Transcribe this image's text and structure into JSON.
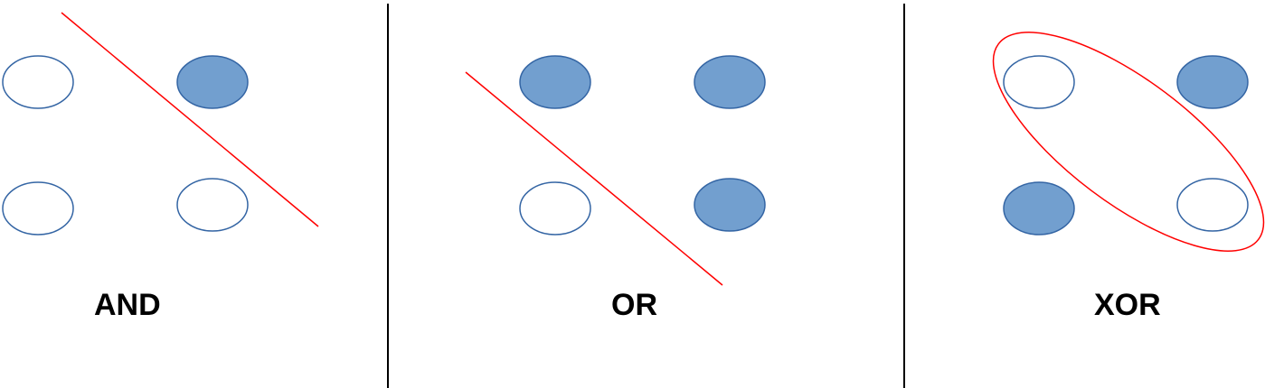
{
  "colors": {
    "filled": "#729fcf",
    "stroke": "#3465a4",
    "separator": "#ff0000",
    "divider": "#000000",
    "background": "#ffffff"
  },
  "panels": [
    {
      "label": "AND",
      "points": [
        {
          "input": [
            0,
            1
          ],
          "filled": false
        },
        {
          "input": [
            1,
            1
          ],
          "filled": true
        },
        {
          "input": [
            0,
            0
          ],
          "filled": false
        },
        {
          "input": [
            1,
            0
          ],
          "filled": false
        }
      ],
      "separator": "line"
    },
    {
      "label": "OR",
      "points": [
        {
          "input": [
            0,
            1
          ],
          "filled": true
        },
        {
          "input": [
            1,
            1
          ],
          "filled": true
        },
        {
          "input": [
            0,
            0
          ],
          "filled": false
        },
        {
          "input": [
            1,
            0
          ],
          "filled": true
        }
      ],
      "separator": "line"
    },
    {
      "label": "XOR",
      "points": [
        {
          "input": [
            0,
            1
          ],
          "filled": false
        },
        {
          "input": [
            1,
            1
          ],
          "filled": true
        },
        {
          "input": [
            0,
            0
          ],
          "filled": true
        },
        {
          "input": [
            1,
            0
          ],
          "filled": false
        }
      ],
      "separator": "ellipse"
    }
  ]
}
